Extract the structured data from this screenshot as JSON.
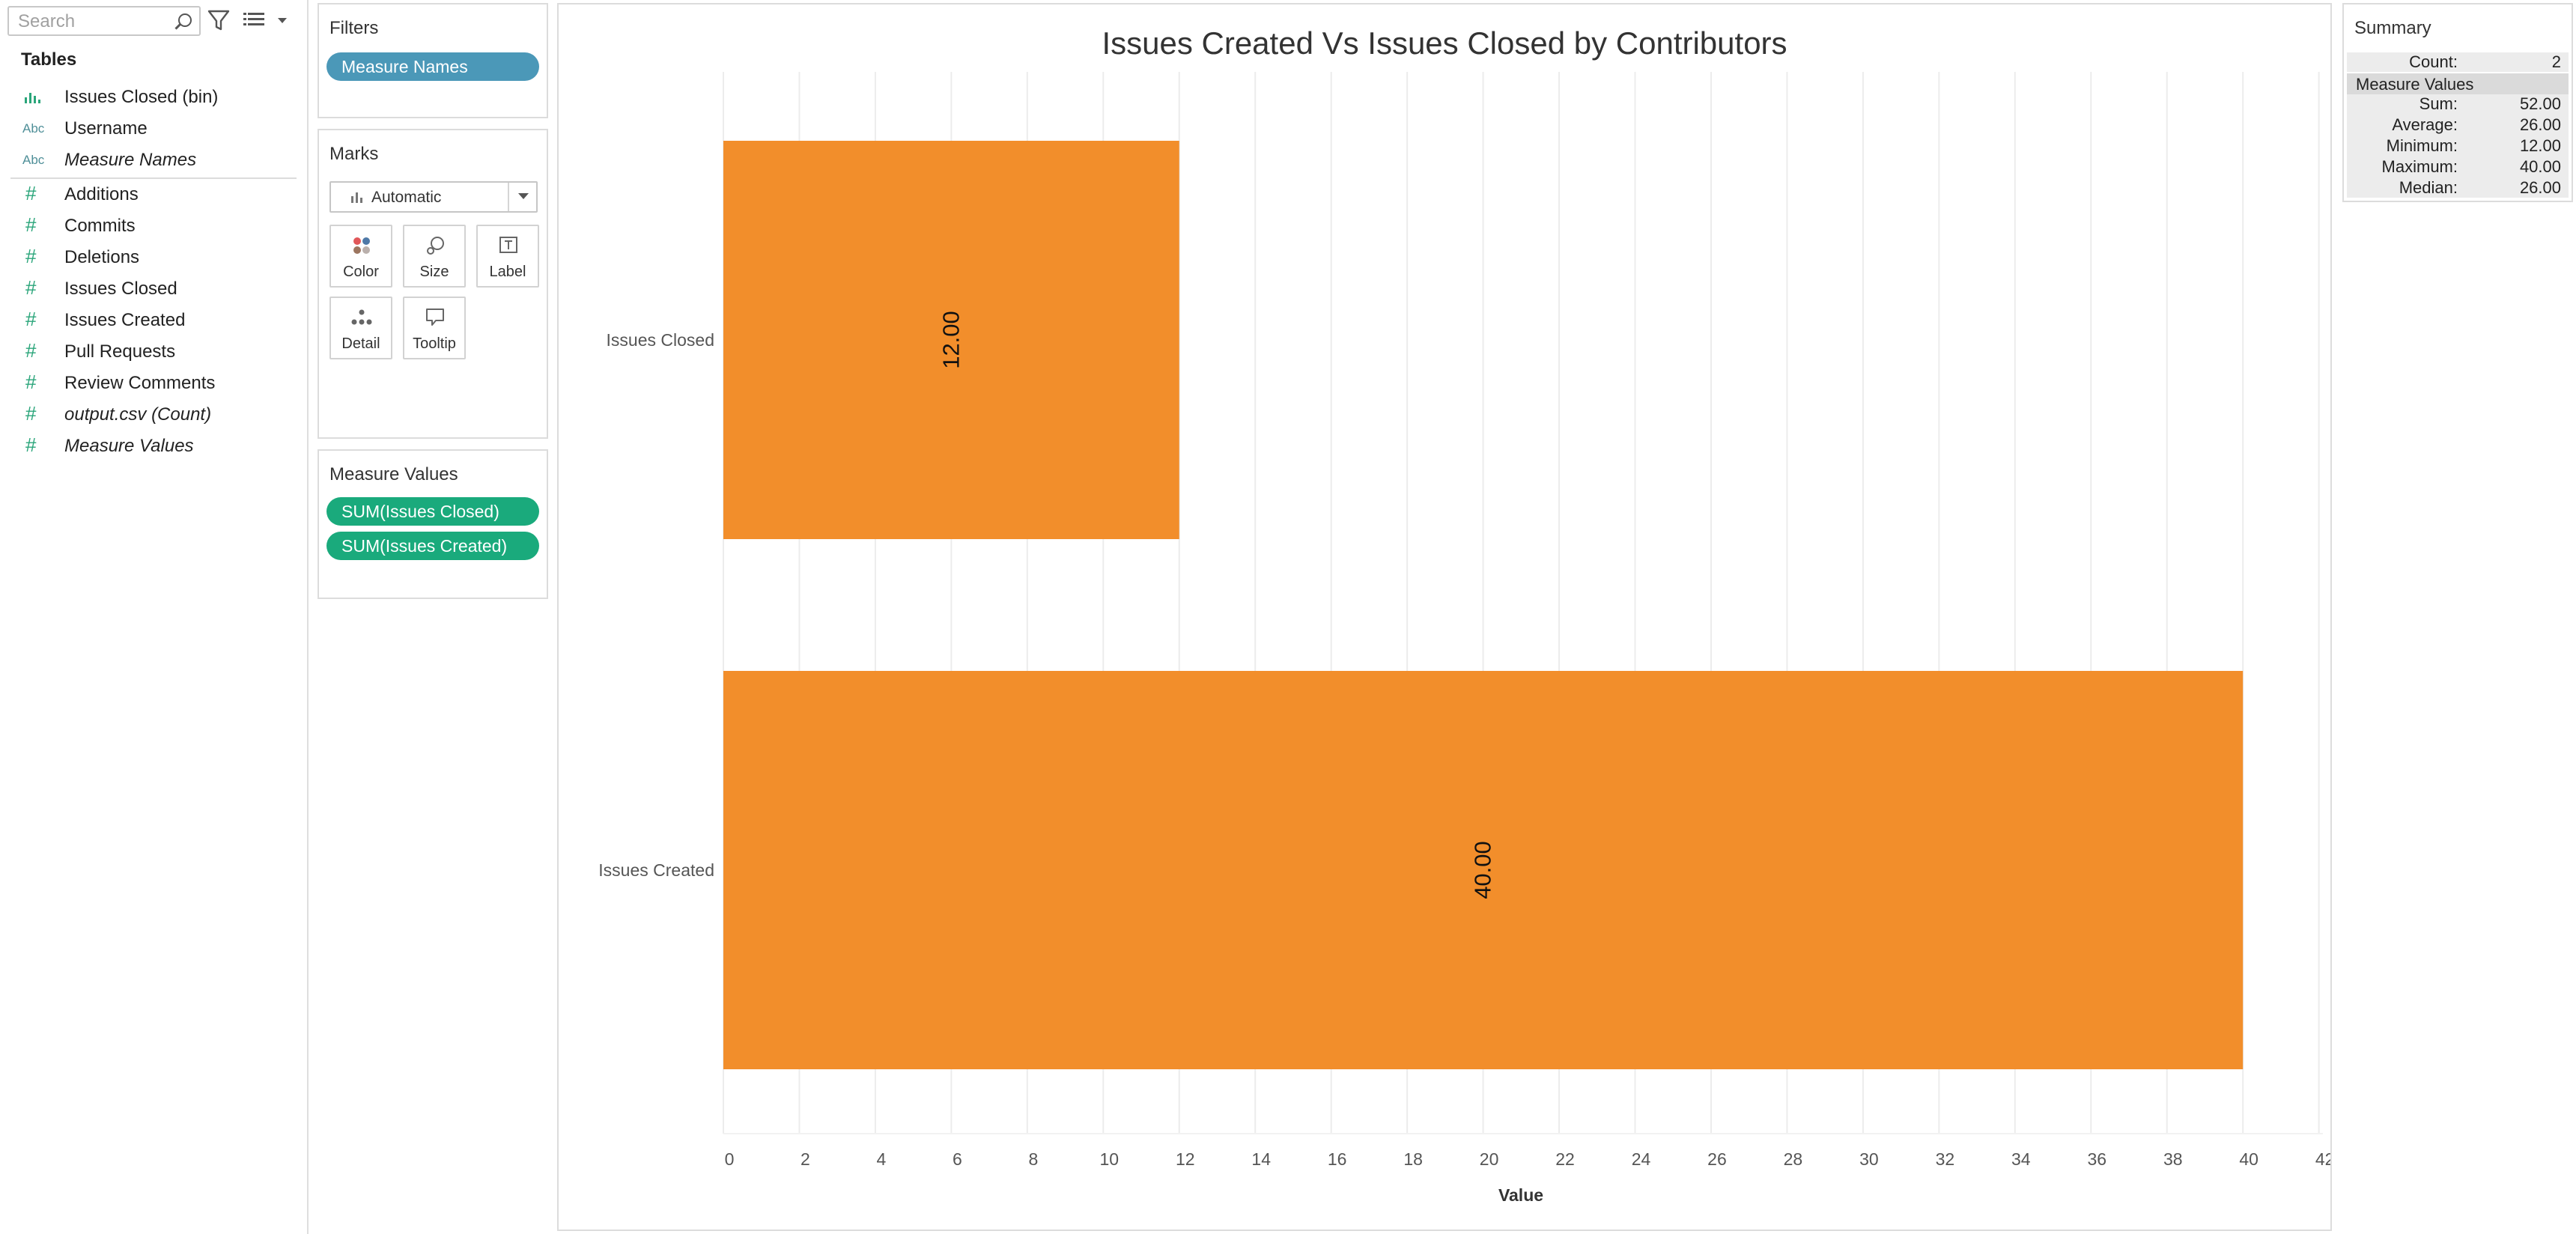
{
  "data_pane": {
    "search_placeholder": "Search",
    "tables_heading": "Tables",
    "fields": [
      {
        "label": "Issues Closed (bin)",
        "icon": "bin-bar-icon",
        "italic": false
      },
      {
        "label": "Username",
        "icon": "abc-string-icon",
        "italic": false
      },
      {
        "label": "Measure Names",
        "icon": "abc-string-icon",
        "italic": true
      },
      {
        "label": "Additions",
        "icon": "hash-number-icon",
        "italic": false
      },
      {
        "label": "Commits",
        "icon": "hash-number-icon",
        "italic": false
      },
      {
        "label": "Deletions",
        "icon": "hash-number-icon",
        "italic": false
      },
      {
        "label": "Issues Closed",
        "icon": "hash-number-icon",
        "italic": false
      },
      {
        "label": "Issues Created",
        "icon": "hash-number-icon",
        "italic": false
      },
      {
        "label": "Pull Requests",
        "icon": "hash-number-icon",
        "italic": false
      },
      {
        "label": "Review Comments",
        "icon": "hash-number-icon",
        "italic": false
      },
      {
        "label": "output.csv (Count)",
        "icon": "hash-number-icon",
        "italic": true
      },
      {
        "label": "Measure Values",
        "icon": "hash-number-icon",
        "italic": true
      }
    ],
    "abc_glyph": "Abc"
  },
  "filters": {
    "title": "Filters",
    "pills": [
      "Measure Names"
    ]
  },
  "marks": {
    "title": "Marks",
    "mark_type": "Automatic",
    "buttons": [
      {
        "label": "Color",
        "icon": "color-dots-icon"
      },
      {
        "label": "Size",
        "icon": "size-shapes-icon"
      },
      {
        "label": "Label",
        "icon": "label-text-icon"
      },
      {
        "label": "Detail",
        "icon": "detail-dots-icon"
      },
      {
        "label": "Tooltip",
        "icon": "tooltip-bubble-icon"
      }
    ]
  },
  "measure_values": {
    "title": "Measure Values",
    "pills": [
      "SUM(Issues Closed)",
      "SUM(Issues Created)"
    ]
  },
  "colors": {
    "bar": "#f28e2b",
    "pill_blue": "#4b98b8",
    "pill_green": "#1aaa7c",
    "field_icon_teal": "#4f8f98",
    "field_icon_green": "#2aa57a"
  },
  "chart_data": {
    "type": "bar",
    "orientation": "horizontal",
    "title": "Issues Created Vs Issues Closed by Contributors",
    "categories": [
      "Issues Closed",
      "Issues Created"
    ],
    "values": [
      12,
      40
    ],
    "data_labels": [
      "12.00",
      "40.00"
    ],
    "xlabel": "Value",
    "ylabel": "",
    "xlim": [
      0,
      42
    ],
    "xticks": [
      0,
      2,
      4,
      6,
      8,
      10,
      12,
      14,
      16,
      18,
      20,
      22,
      24,
      26,
      28,
      30,
      32,
      34,
      36,
      38,
      40,
      42
    ],
    "grid": "vertical",
    "legend": "none"
  },
  "summary": {
    "title": "Summary",
    "count_label": "Count:",
    "count_value": "2",
    "mv_heading": "Measure Values",
    "rows": [
      {
        "label": "Sum:",
        "value": "52.00"
      },
      {
        "label": "Average:",
        "value": "26.00"
      },
      {
        "label": "Minimum:",
        "value": "12.00"
      },
      {
        "label": "Maximum:",
        "value": "40.00"
      },
      {
        "label": "Median:",
        "value": "26.00"
      }
    ]
  }
}
